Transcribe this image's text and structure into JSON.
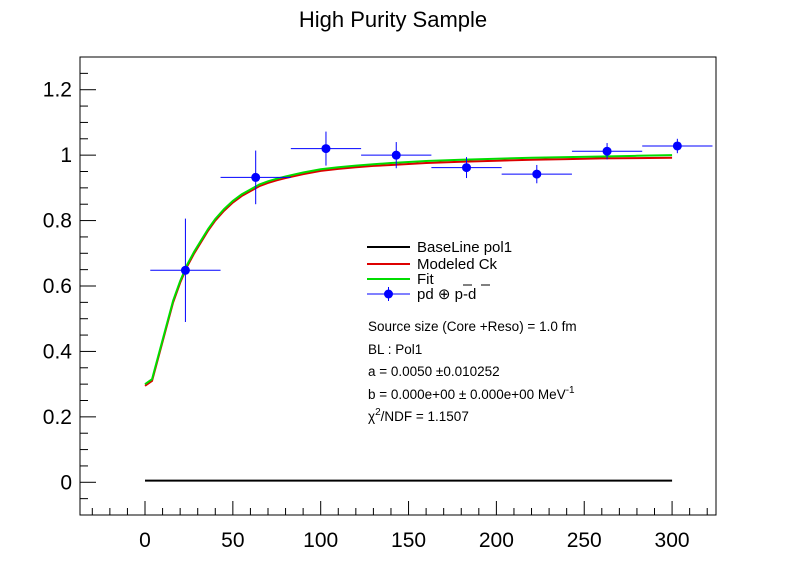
{
  "chart_data": {
    "type": "scatter",
    "title": "High Purity Sample",
    "xlabel": "",
    "ylabel": "",
    "xlim": [
      -37,
      325
    ],
    "ylim": [
      -0.1,
      1.3
    ],
    "x_ticks": [
      0,
      50,
      100,
      150,
      200,
      250,
      300
    ],
    "x_tick_labels": [
      "0",
      "50",
      "100",
      "150",
      "200",
      "250",
      "300"
    ],
    "y_ticks": [
      0,
      0.2,
      0.4,
      0.6,
      0.8,
      1.0,
      1.2
    ],
    "y_tick_labels": [
      "0",
      "0.2",
      "0.4",
      "0.6",
      "0.8",
      "1",
      "1.2"
    ],
    "grid": false,
    "legend_position": "center-right",
    "series": [
      {
        "name": "BaseLine pol1",
        "kind": "line",
        "color": "#000000",
        "x": [
          0,
          300
        ],
        "y": [
          0.005,
          0.005
        ]
      },
      {
        "name": "Modeled Ck",
        "kind": "line",
        "color": "#dd0000",
        "x": [
          0,
          4,
          8,
          12,
          16,
          20,
          24,
          28,
          32,
          36,
          40,
          45,
          50,
          55,
          60,
          65,
          70,
          75,
          80,
          90,
          100,
          110,
          120,
          130,
          140,
          150,
          160,
          180,
          200,
          220,
          240,
          260,
          280,
          300
        ],
        "y": [
          0.295,
          0.31,
          0.39,
          0.47,
          0.55,
          0.61,
          0.66,
          0.7,
          0.735,
          0.77,
          0.8,
          0.83,
          0.855,
          0.875,
          0.89,
          0.905,
          0.915,
          0.923,
          0.93,
          0.942,
          0.952,
          0.958,
          0.963,
          0.967,
          0.97,
          0.973,
          0.976,
          0.98,
          0.983,
          0.986,
          0.988,
          0.99,
          0.991,
          0.992
        ]
      },
      {
        "name": "Fit",
        "kind": "line",
        "color": "#00dd00",
        "x": [
          0,
          4,
          8,
          12,
          16,
          20,
          24,
          28,
          32,
          36,
          40,
          45,
          50,
          55,
          60,
          65,
          70,
          75,
          80,
          90,
          100,
          110,
          120,
          130,
          140,
          150,
          160,
          180,
          200,
          220,
          240,
          260,
          280,
          300
        ],
        "y": [
          0.3,
          0.315,
          0.395,
          0.475,
          0.555,
          0.615,
          0.665,
          0.705,
          0.74,
          0.775,
          0.805,
          0.835,
          0.86,
          0.88,
          0.895,
          0.91,
          0.92,
          0.928,
          0.935,
          0.947,
          0.957,
          0.963,
          0.968,
          0.972,
          0.976,
          0.979,
          0.982,
          0.986,
          0.989,
          0.992,
          0.994,
          0.996,
          0.998,
          1.0
        ]
      },
      {
        "name": "pd ⊕ p̄-d̄",
        "kind": "points",
        "color": "#0000ff",
        "x": [
          23,
          63,
          103,
          143,
          183,
          223,
          263,
          303
        ],
        "y": [
          0.648,
          0.932,
          1.02,
          1.0,
          0.962,
          0.942,
          1.012,
          1.028
        ],
        "x_err": [
          20,
          20,
          20,
          20,
          20,
          20,
          20,
          20
        ],
        "y_err": [
          0.158,
          0.082,
          0.052,
          0.04,
          0.032,
          0.028,
          0.025,
          0.022
        ]
      }
    ],
    "annotations": {
      "source_size": "Source size (Core +Reso) = 1.0 fm",
      "bl": "BL : Pol1",
      "a": "a =  0.0050 ±0.010252",
      "b": "b =  0.000e+00 ± 0.000e+00 MeV",
      "b_unit_exp": "-1",
      "chi2_prefix": "χ",
      "chi2_exp": "2",
      "chi2_rest": "/NDF =  1.1507"
    },
    "legend": {
      "baseline": "BaseLine pol1",
      "modeled": "Modeled Ck",
      "fit": "Fit",
      "data_a": "pd ⊕ ",
      "data_b": "p",
      "data_c": "-",
      "data_d": "d"
    }
  }
}
